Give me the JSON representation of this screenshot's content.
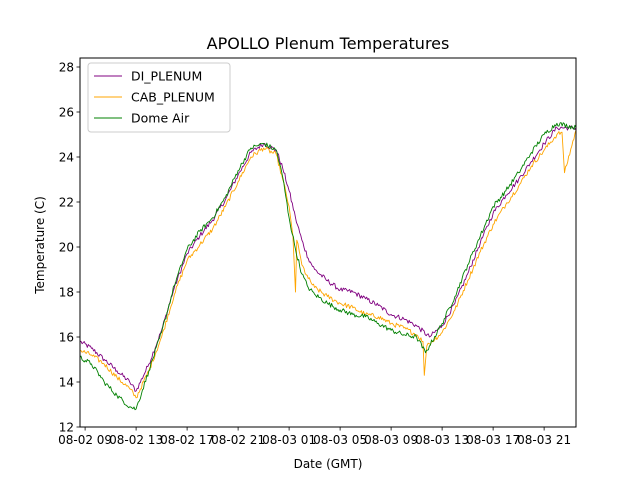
{
  "chart_data": {
    "type": "line",
    "title": "APOLLO Plenum Temperatures",
    "xlabel": "Date (GMT)",
    "ylabel": "Temperature (C)",
    "x_unit": "hours since 08-02 09:00 GMT",
    "xlim": [
      -0.4,
      38.5
    ],
    "ylim": [
      12.0,
      28.4
    ],
    "yticks": [
      12,
      14,
      16,
      18,
      20,
      22,
      24,
      26,
      28
    ],
    "xticks": [
      {
        "x": 0,
        "label": "08-02 09"
      },
      {
        "x": 4,
        "label": "08-02 13"
      },
      {
        "x": 8,
        "label": "08-02 17"
      },
      {
        "x": 12,
        "label": "08-02 21"
      },
      {
        "x": 16,
        "label": "08-03 01"
      },
      {
        "x": 20,
        "label": "08-03 05"
      },
      {
        "x": 24,
        "label": "08-03 09"
      },
      {
        "x": 28,
        "label": "08-03 13"
      },
      {
        "x": 32,
        "label": "08-03 17"
      },
      {
        "x": 36,
        "label": "08-03 21"
      }
    ],
    "grid": false,
    "legend_position": "top-left",
    "series": [
      {
        "name": "DI_PLENUM",
        "color": "#800080",
        "x": [
          -0.4,
          0.5,
          1.5,
          2.5,
          3.5,
          4.0,
          5.0,
          6.0,
          7.0,
          8.0,
          9.0,
          10.0,
          11.0,
          12.0,
          13.0,
          14.0,
          15.0,
          15.5,
          16.0,
          16.5,
          17.0,
          17.5,
          18.0,
          19.0,
          20.0,
          21.0,
          22.0,
          23.0,
          24.0,
          25.0,
          26.0,
          27.0,
          28.0,
          29.0,
          30.0,
          31.0,
          32.0,
          33.0,
          34.0,
          35.0,
          36.0,
          37.0,
          38.5
        ],
        "y": [
          15.8,
          15.5,
          15.0,
          14.5,
          14.0,
          13.6,
          14.8,
          16.3,
          18.2,
          19.7,
          20.5,
          21.2,
          22.1,
          23.2,
          24.2,
          24.6,
          24.3,
          23.5,
          22.5,
          21.3,
          20.3,
          19.5,
          19.0,
          18.5,
          18.1,
          18.0,
          17.7,
          17.4,
          17.0,
          16.8,
          16.5,
          16.0,
          16.5,
          17.5,
          18.8,
          20.2,
          21.5,
          22.3,
          23.0,
          23.8,
          24.6,
          25.3,
          25.3
        ]
      },
      {
        "name": "CAB_PLENUM",
        "color": "#FFA500",
        "x": [
          -0.4,
          0.5,
          1.5,
          2.5,
          3.5,
          4.0,
          5.0,
          6.0,
          7.0,
          8.0,
          9.0,
          10.0,
          11.0,
          12.0,
          13.0,
          14.0,
          15.0,
          15.5,
          16.0,
          16.3,
          16.5,
          16.6,
          16.8,
          17.0,
          17.5,
          18.0,
          19.0,
          20.0,
          21.0,
          22.0,
          23.0,
          24.0,
          25.0,
          26.0,
          26.5,
          26.6,
          26.8,
          27.0,
          28.0,
          29.0,
          30.0,
          31.0,
          32.0,
          33.0,
          34.0,
          35.0,
          36.0,
          37.0,
          37.4,
          37.6,
          38.5
        ],
        "y": [
          15.4,
          15.2,
          14.8,
          14.2,
          13.7,
          13.3,
          14.5,
          16.0,
          17.9,
          19.4,
          20.1,
          20.8,
          21.8,
          22.9,
          24.0,
          24.4,
          24.1,
          23.0,
          21.8,
          20.5,
          18.0,
          20.3,
          19.8,
          19.2,
          18.6,
          18.2,
          17.8,
          17.5,
          17.3,
          17.0,
          16.9,
          16.6,
          16.4,
          16.1,
          15.8,
          14.3,
          15.6,
          15.7,
          16.2,
          17.2,
          18.5,
          19.8,
          21.0,
          21.9,
          22.7,
          23.6,
          24.3,
          25.0,
          25.1,
          23.3,
          25.2
        ]
      },
      {
        "name": "Dome Air",
        "color": "#008000",
        "x": [
          -0.4,
          0.5,
          1.5,
          2.5,
          3.5,
          4.0,
          5.0,
          6.0,
          7.0,
          8.0,
          9.0,
          10.0,
          11.0,
          12.0,
          13.0,
          14.0,
          15.0,
          15.5,
          16.0,
          16.5,
          17.0,
          17.5,
          18.0,
          19.0,
          20.0,
          21.0,
          22.0,
          23.0,
          24.0,
          25.0,
          26.0,
          26.7,
          27.0,
          28.0,
          29.0,
          30.0,
          31.0,
          32.0,
          33.0,
          34.0,
          35.0,
          36.0,
          37.0,
          38.5
        ],
        "y": [
          15.1,
          14.8,
          14.0,
          13.4,
          12.9,
          12.8,
          14.5,
          16.2,
          18.3,
          19.9,
          20.7,
          21.3,
          22.2,
          23.4,
          24.4,
          24.6,
          24.3,
          23.1,
          21.3,
          19.9,
          18.8,
          18.2,
          17.9,
          17.5,
          17.2,
          17.0,
          16.9,
          16.6,
          16.3,
          16.1,
          16.0,
          15.3,
          15.6,
          16.6,
          17.8,
          19.2,
          20.5,
          21.8,
          22.5,
          23.3,
          24.2,
          25.0,
          25.5,
          25.3
        ]
      }
    ]
  }
}
